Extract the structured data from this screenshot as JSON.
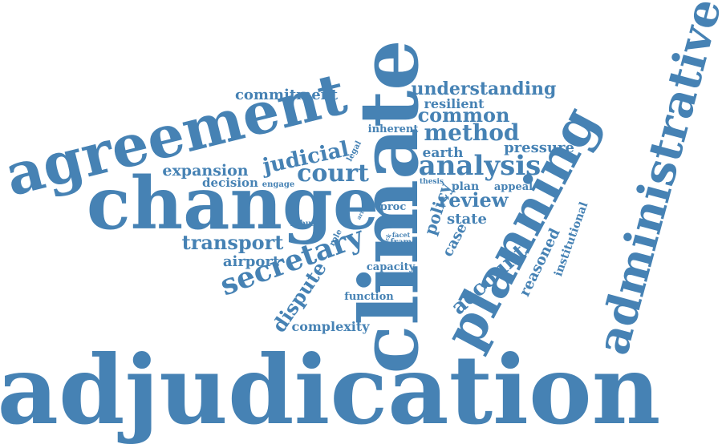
{
  "word_cloud": {
    "color": "#4682b4",
    "background": "#ffffff",
    "words": {
      "adjudication": "adjudication",
      "climate": "climate",
      "change": "change",
      "agreement": "agreement",
      "planning": "planning",
      "administrative": "administrative",
      "secretary": "secretary",
      "analysis": "analysis",
      "court": "court",
      "judicial": "judicial",
      "method": "method",
      "common": "common",
      "understanding": "understanding",
      "commitment": "commitment",
      "resilient": "resilient",
      "inherent": "inherent",
      "earth": "earth",
      "pressure": "pressure",
      "expansion": "expansion",
      "decision": "decision",
      "engage": "engage",
      "legal": "legal",
      "thesis": "thesis",
      "policy": "policy",
      "plan": "plan",
      "appeal": "appeal",
      "review": "review",
      "state": "state",
      "transport": "transport",
      "airport": "airport",
      "robust": "robust",
      "arise": "arise",
      "role": "role",
      "thick": "thick",
      "facet": "facet",
      "frame": "frame",
      "proc": "proc",
      "case": "case",
      "capacity": "capacity",
      "account": "account",
      "reasoned": "reasoned",
      "institutional": "institutional",
      "dispute": "dispute",
      "function": "function",
      "complexity": "complexity"
    }
  }
}
